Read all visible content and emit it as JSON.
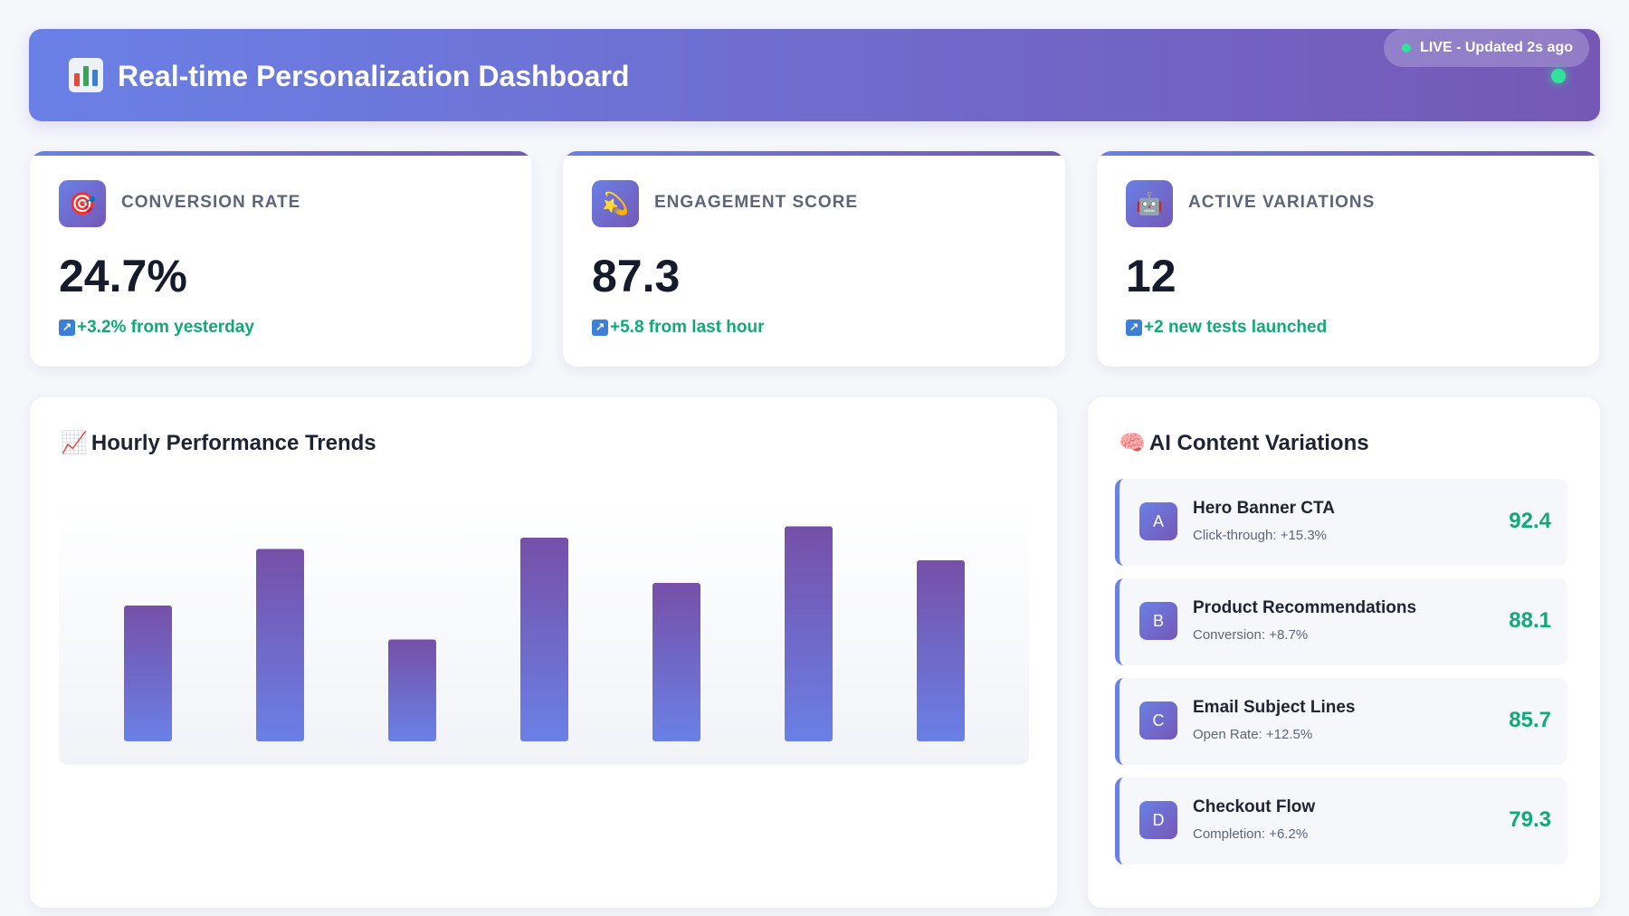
{
  "header": {
    "title": "Real-time Personalization Dashboard",
    "icon": "bar-chart-icon",
    "status": "LIVE - Updated 2s ago"
  },
  "kpis": [
    {
      "icon": "target-icon",
      "label": "CONVERSION RATE",
      "value": "24.7%",
      "delta": "+3.2% from yesterday"
    },
    {
      "icon": "shooting-star-icon",
      "label": "ENGAGEMENT SCORE",
      "value": "87.3",
      "delta": "+5.8 from last hour"
    },
    {
      "icon": "robot-icon",
      "label": "ACTIVE VARIATIONS",
      "value": "12",
      "delta": "+2 new tests launched"
    }
  ],
  "trends": {
    "title": "Hourly Performance Trends",
    "icon": "chart-increasing-icon"
  },
  "chart_data": {
    "type": "bar",
    "title": "Hourly Performance Trends",
    "categories": [
      "",
      "",
      "",
      "",
      "",
      "",
      ""
    ],
    "values": [
      60,
      85,
      45,
      90,
      70,
      95,
      80
    ],
    "ylim": [
      0,
      100
    ],
    "grid": false,
    "colors": {
      "top": "#7650a8",
      "bottom": "#6a80e6"
    }
  },
  "variations": {
    "title": "AI Content Variations",
    "icon": "brain-icon",
    "items": [
      {
        "badge": "A",
        "name": "Hero Banner CTA",
        "metric": "Click-through: +15.3%",
        "score": "92.4"
      },
      {
        "badge": "B",
        "name": "Product Recommendations",
        "metric": "Conversion: +8.7%",
        "score": "88.1"
      },
      {
        "badge": "C",
        "name": "Email Subject Lines",
        "metric": "Open Rate: +12.5%",
        "score": "85.7"
      },
      {
        "badge": "D",
        "name": "Checkout Flow",
        "metric": "Completion: +6.2%",
        "score": "79.3"
      }
    ]
  },
  "colors": {
    "accent_start": "#6a80e6",
    "accent_end": "#7558b6",
    "positive": "#13a87a",
    "live": "#2fe39a"
  }
}
